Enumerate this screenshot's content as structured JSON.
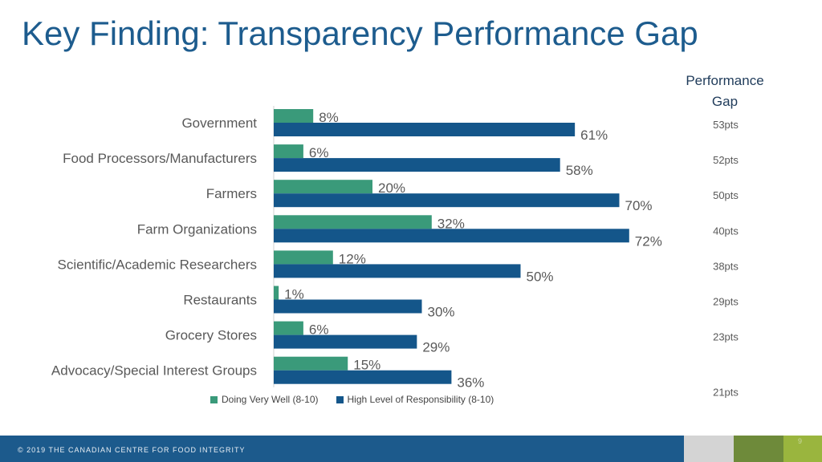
{
  "title": "Key Finding: Transparency Performance Gap",
  "gap_header": [
    "Performance",
    "Gap"
  ],
  "footer_text": "© 2019 THE CANADIAN CENTRE FOR FOOD INTEGRITY",
  "page_number": "9",
  "colors": {
    "title": "#1d5c8e",
    "doing_well": "#3a9a7a",
    "responsibility": "#14568a",
    "footer": "#1c5a8c",
    "footer_gray": "#d4d4d4",
    "footer_olive": "#6e8a3a",
    "footer_lime": "#9ab53e"
  },
  "chart_data": {
    "type": "bar",
    "orientation": "horizontal",
    "categories": [
      "Government",
      "Food Processors/Manufacturers",
      "Farmers",
      "Farm Organizations",
      "Scientific/Academic Researchers",
      "Restaurants",
      "Grocery Stores",
      "Advocacy/Special Interest Groups"
    ],
    "series": [
      {
        "name": "Doing Very Well (8-10)",
        "values": [
          8,
          6,
          20,
          32,
          12,
          1,
          6,
          15
        ],
        "labels": [
          "8%",
          "6%",
          "20%",
          "32%",
          "12%",
          "1%",
          "6%",
          "15%"
        ]
      },
      {
        "name": "High Level of Responsibility (8-10)",
        "values": [
          61,
          58,
          70,
          72,
          50,
          30,
          29,
          36
        ],
        "labels": [
          "61%",
          "58%",
          "70%",
          "72%",
          "50%",
          "30%",
          "29%",
          "36%"
        ]
      }
    ],
    "gaps": [
      "53pts",
      "52pts",
      "50pts",
      "40pts",
      "38pts",
      "29pts",
      "23pts",
      "21pts"
    ],
    "xlim": [
      0,
      100
    ],
    "grid": false,
    "legend_position": "bottom"
  }
}
